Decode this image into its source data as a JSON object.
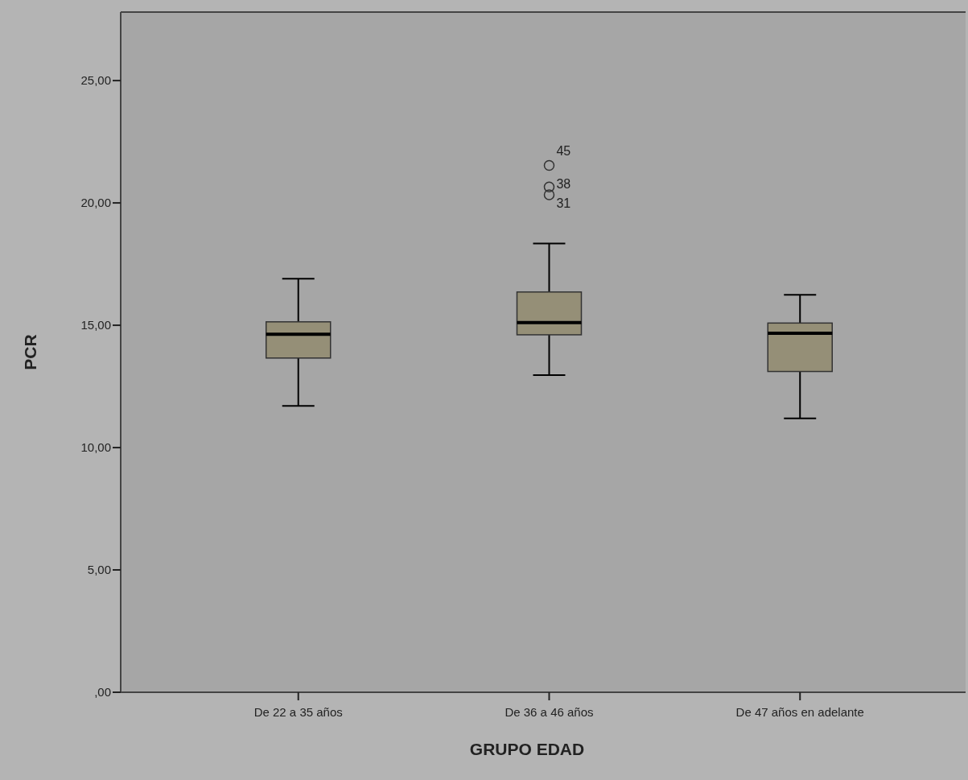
{
  "chart_data": {
    "type": "box",
    "xlabel": "GRUPO EDAD",
    "ylabel": "PCR",
    "categories": [
      "De 22 a 35 años",
      "De 36 a 46 años",
      "De 47 años en adelante"
    ],
    "color": "#958f77",
    "boxes": [
      {
        "low": 11.7,
        "q1": 13.66,
        "median": 14.63,
        "q3": 15.14,
        "high": 16.9
      },
      {
        "low": 12.96,
        "q1": 14.61,
        "median": 15.11,
        "q3": 16.36,
        "high": 18.34,
        "outliers": [
          20.33,
          20.65,
          21.53
        ]
      },
      {
        "low": 11.19,
        "q1": 13.11,
        "median": 14.67,
        "q3": 15.09,
        "high": 16.24
      }
    ],
    "annotations": [
      "45",
      "38",
      "31"
    ],
    "ylim": [
      0,
      27.8
    ],
    "yticks": [
      {
        "value": 0,
        "label": ",00"
      },
      {
        "value": 5,
        "label": "5,00"
      },
      {
        "value": 10,
        "label": "10,00"
      },
      {
        "value": 15,
        "label": "15,00"
      },
      {
        "value": 20,
        "label": "20,00"
      },
      {
        "value": 25,
        "label": "25,00"
      }
    ],
    "grid": false
  }
}
